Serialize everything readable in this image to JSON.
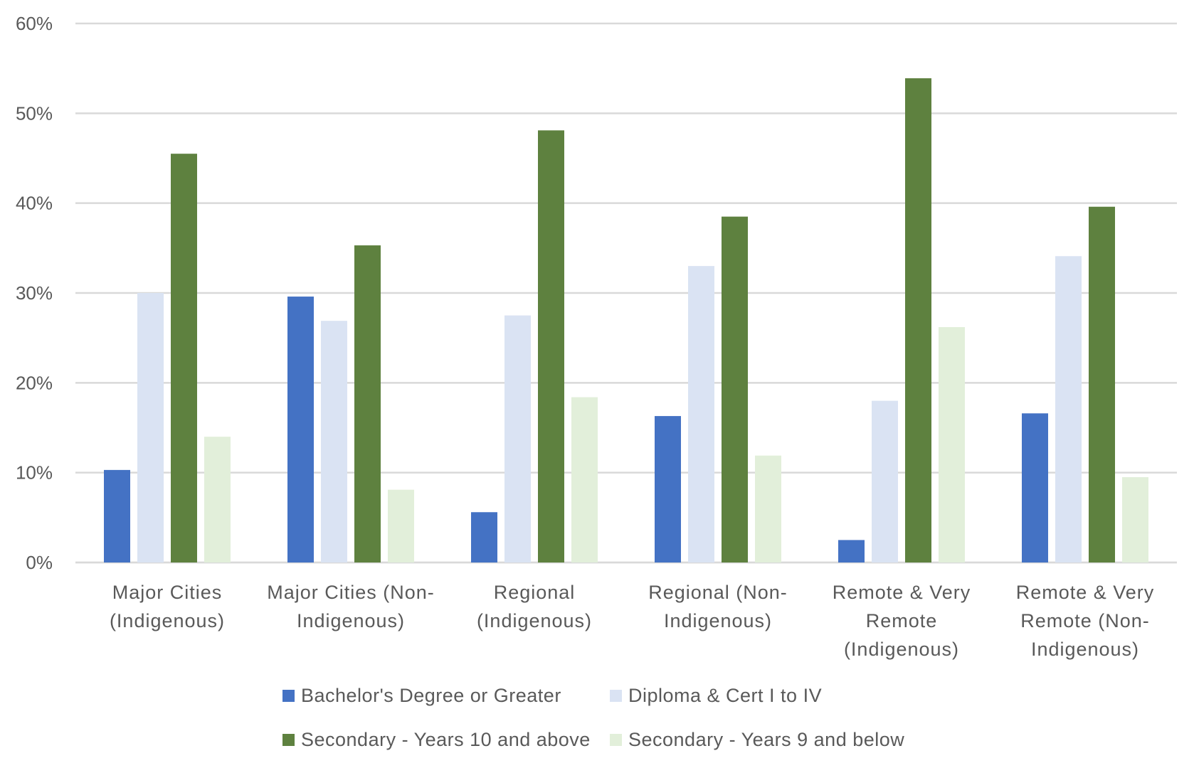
{
  "chart_data": {
    "type": "bar",
    "title": "",
    "xlabel": "",
    "ylabel": "",
    "ylim": [
      0,
      60
    ],
    "yticks": [
      0,
      10,
      20,
      30,
      40,
      50,
      60
    ],
    "ytick_labels": [
      "0%",
      "10%",
      "20%",
      "30%",
      "40%",
      "50%",
      "60%"
    ],
    "grid": true,
    "legend_position": "bottom",
    "categories": [
      "Major Cities (Indigenous)",
      "Major Cities (Non-Indigenous)",
      "Regional (Indigenous)",
      "Regional (Non-Indigenous)",
      "Remote & Very Remote (Indigenous)",
      "Remote & Very Remote (Non-Indigenous)"
    ],
    "category_label_lines": [
      [
        "Major Cities",
        "(Indigenous)"
      ],
      [
        "Major Cities (Non-",
        "Indigenous)"
      ],
      [
        "Regional",
        "(Indigenous)"
      ],
      [
        "Regional (Non-",
        "Indigenous)"
      ],
      [
        "Remote & Very",
        "Remote",
        "(Indigenous)"
      ],
      [
        "Remote & Very",
        "Remote (Non-",
        "Indigenous)"
      ]
    ],
    "series": [
      {
        "name": "Bachelor's Degree or Greater",
        "color": "#4472C4",
        "values": [
          10.3,
          29.6,
          5.6,
          16.3,
          2.5,
          16.6
        ]
      },
      {
        "name": "Diploma & Cert I to IV",
        "color": "#DAE3F3",
        "values": [
          30.0,
          26.9,
          27.5,
          33.0,
          18.0,
          34.1
        ]
      },
      {
        "name": "Secondary - Years 10 and above",
        "color": "#5E813F",
        "values": [
          45.5,
          35.3,
          48.1,
          38.5,
          53.9,
          39.6
        ]
      },
      {
        "name": "Secondary - Years 9 and below",
        "color": "#E2EFDA",
        "values": [
          14.0,
          8.1,
          18.4,
          11.9,
          26.2,
          9.5
        ]
      }
    ]
  }
}
